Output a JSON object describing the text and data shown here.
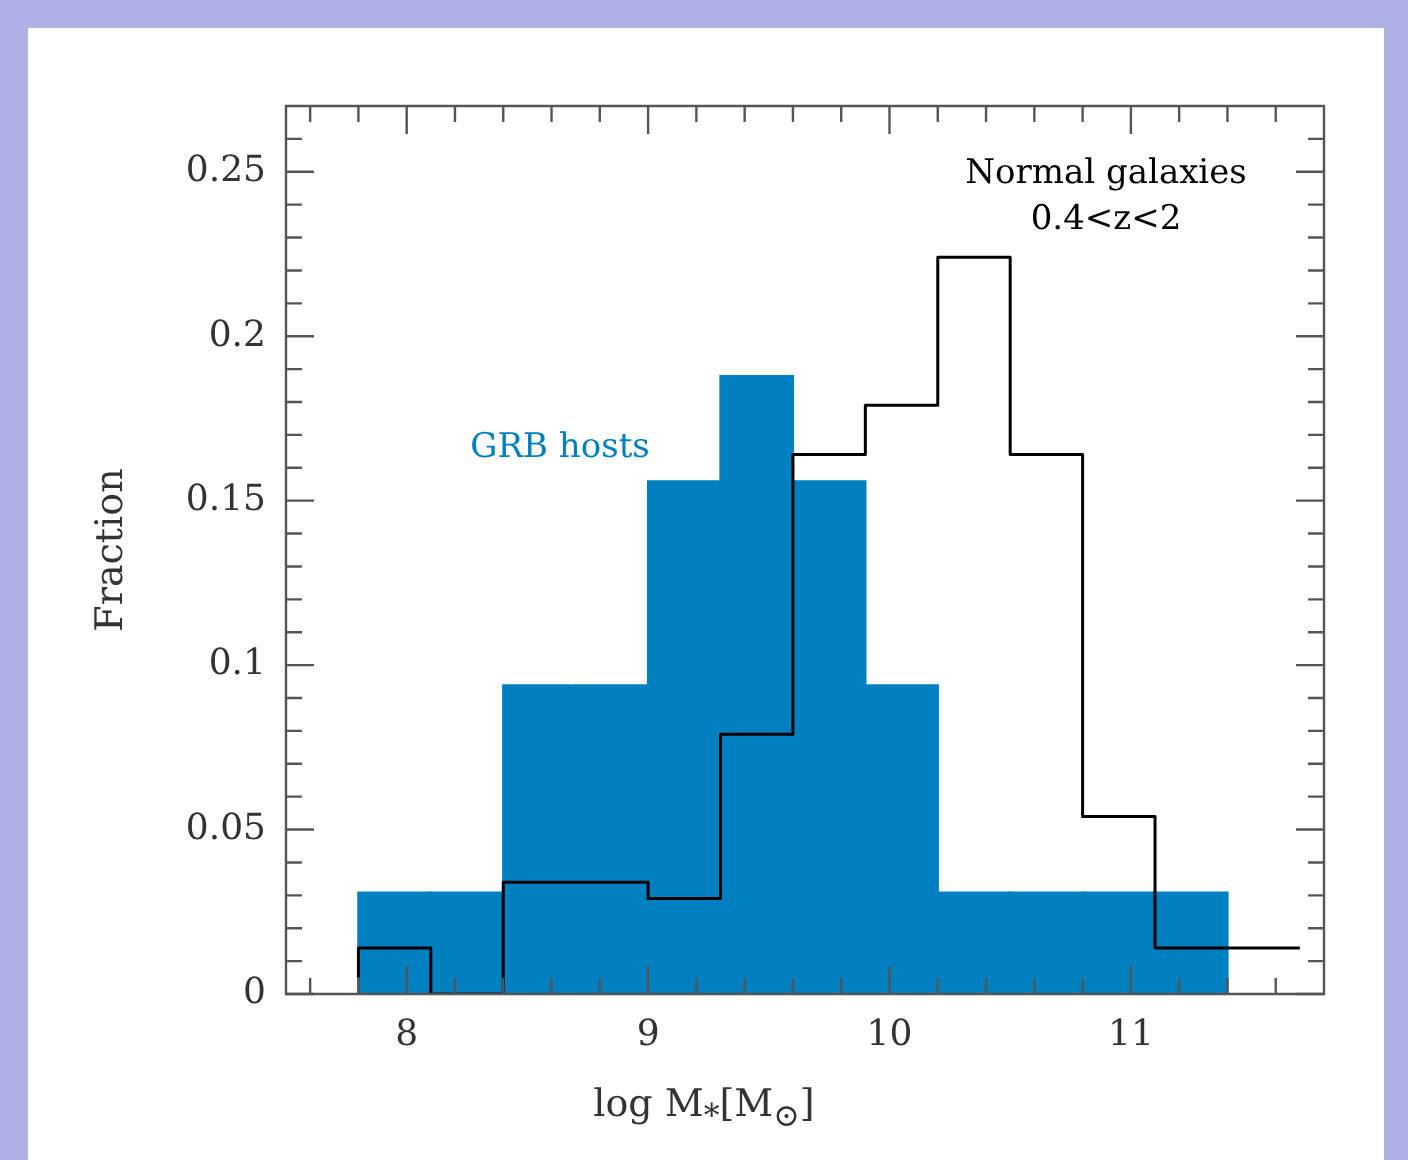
{
  "chart_data": {
    "type": "histogram",
    "xlabel": "log M$_{*}$[M$_{⊙}$]",
    "ylabel": "Fraction",
    "bins": [
      7.8,
      8.1,
      8.4,
      8.7,
      9.0,
      9.3,
      9.6,
      9.9,
      10.2,
      10.5,
      10.8,
      11.1,
      11.4,
      11.7
    ],
    "series": [
      {
        "name": "GRB hosts",
        "color": "#0080c0",
        "values": [
          0.031,
          0.031,
          0.094,
          0.094,
          0.156,
          0.188,
          0.156,
          0.094,
          0.031,
          0.031,
          0.031,
          0.031,
          0
        ]
      },
      {
        "name": "Normal galaxies\n0.4<z<2",
        "type": "step",
        "color": "#000000",
        "x": [
          7.8,
          8.1,
          8.4,
          8.7,
          9.0,
          9.3,
          9.6,
          9.9,
          10.2,
          10.5,
          10.8,
          11.1,
          11.4,
          11.7
        ],
        "values": [
          0.005,
          0.014,
          0,
          0.034,
          0.034,
          0.029,
          0.079,
          0.164,
          0.179,
          0.224,
          0.164,
          0.054,
          0.014,
          0.014
        ]
      }
    ],
    "xlim": [
      7.5,
      11.8
    ],
    "xticks": [
      {
        "value": 7.6,
        "label": null
      },
      {
        "value": 7.8,
        "label": null
      },
      8,
      {
        "value": 8.2,
        "label": null
      },
      {
        "value": 8.4,
        "label": null
      },
      {
        "value": 8.6,
        "label": null
      },
      {
        "value": 8.8,
        "label": null
      },
      9,
      {
        "value": 9.2,
        "label": null
      },
      {
        "value": 9.4,
        "label": null
      },
      {
        "value": 9.6,
        "label": null
      },
      {
        "value": 9.8,
        "label": null
      },
      10,
      {
        "value": 10.2,
        "label": null
      },
      {
        "value": 10.4,
        "label": null
      },
      {
        "value": 10.6,
        "label": null
      },
      {
        "value": 10.8,
        "label": null
      },
      11,
      {
        "value": 11.2,
        "label": null
      },
      {
        "value": 11.4,
        "label": null
      },
      {
        "value": 11.6,
        "label": null
      }
    ],
    "ylim": [
      0,
      0.27
    ],
    "yticks": [
      0,
      {
        "value": 0.01,
        "label": null
      },
      {
        "value": 0.02,
        "label": null
      },
      {
        "value": 0.03,
        "label": null
      },
      {
        "value": 0.04,
        "label": null
      },
      0.05,
      {
        "value": 0.06,
        "label": null
      },
      {
        "value": 0.07,
        "label": null
      },
      {
        "value": 0.08,
        "label": null
      },
      {
        "value": 0.09,
        "label": null
      },
      0.1,
      {
        "value": 0.11,
        "label": null
      },
      {
        "value": 0.12,
        "label": null
      },
      {
        "value": 0.13,
        "label": null
      },
      {
        "value": 0.14,
        "label": null
      },
      0.15,
      {
        "value": 0.16,
        "label": null
      },
      {
        "value": 0.17,
        "label": null
      },
      {
        "value": 0.18,
        "label": null
      },
      {
        "value": 0.19,
        "label": null
      },
      0.2,
      {
        "value": 0.21,
        "label": null
      },
      {
        "value": 0.22,
        "label": null
      },
      {
        "value": 0.23,
        "label": null
      },
      {
        "value": 0.24,
        "label": null
      },
      0.25,
      {
        "value": 0.26,
        "label": null
      }
    ]
  }
}
